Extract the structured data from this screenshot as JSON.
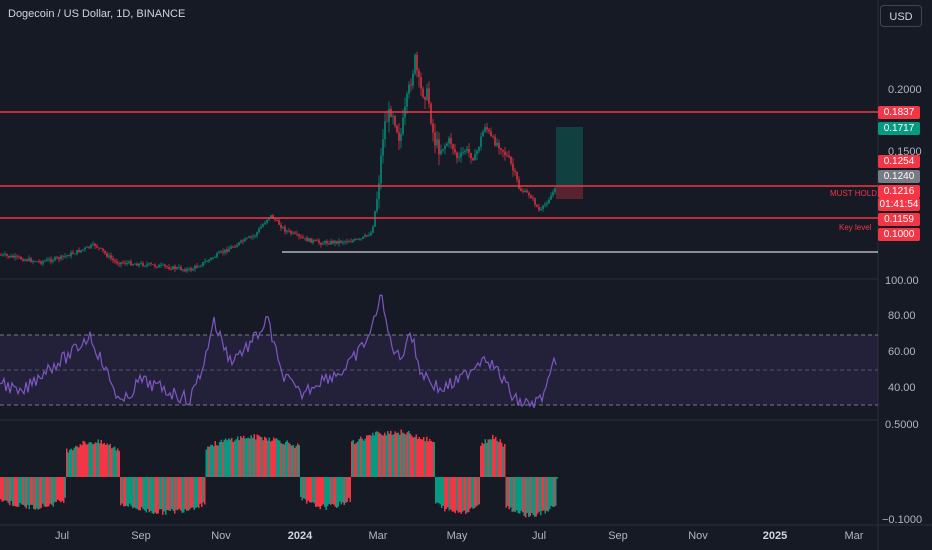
{
  "header": {
    "title": "Dogecoin / US Dollar, 1D, BINANCE",
    "currency_button": "USD"
  },
  "price_axis": {
    "ticks": [
      "0.2000",
      "0.1500"
    ],
    "labels": {
      "must_hold": "MUST HOLD",
      "key_level": "Key level"
    }
  },
  "price_tags": [
    {
      "text": "0.1837",
      "color": "#f23645"
    },
    {
      "text": "0.1717",
      "color": "#089981"
    },
    {
      "text": "0.1254",
      "color": "#f23645"
    },
    {
      "text": "0.1240",
      "color": "#787b86"
    },
    {
      "text": "0.1216",
      "color": "#f23645"
    },
    {
      "text": "01:41:54",
      "color": "#f23645"
    },
    {
      "text": "0.1159",
      "color": "#f23645"
    },
    {
      "text": "0.1000",
      "color": "#f23645"
    }
  ],
  "rsi_axis": {
    "ticks": [
      "100.00",
      "80.00",
      "60.00",
      "40.00"
    ]
  },
  "osc_axis": {
    "ticks": [
      "0.5000",
      "−0.1000"
    ]
  },
  "time_axis": {
    "ticks": [
      "Jul",
      "Sep",
      "Nov",
      "2024",
      "Mar",
      "May",
      "Jul",
      "Sep",
      "Nov",
      "2025",
      "Mar"
    ]
  },
  "colors": {
    "up": "#089981",
    "down": "#f23645",
    "rsi": "#7e57c2",
    "background": "#161a25"
  }
}
